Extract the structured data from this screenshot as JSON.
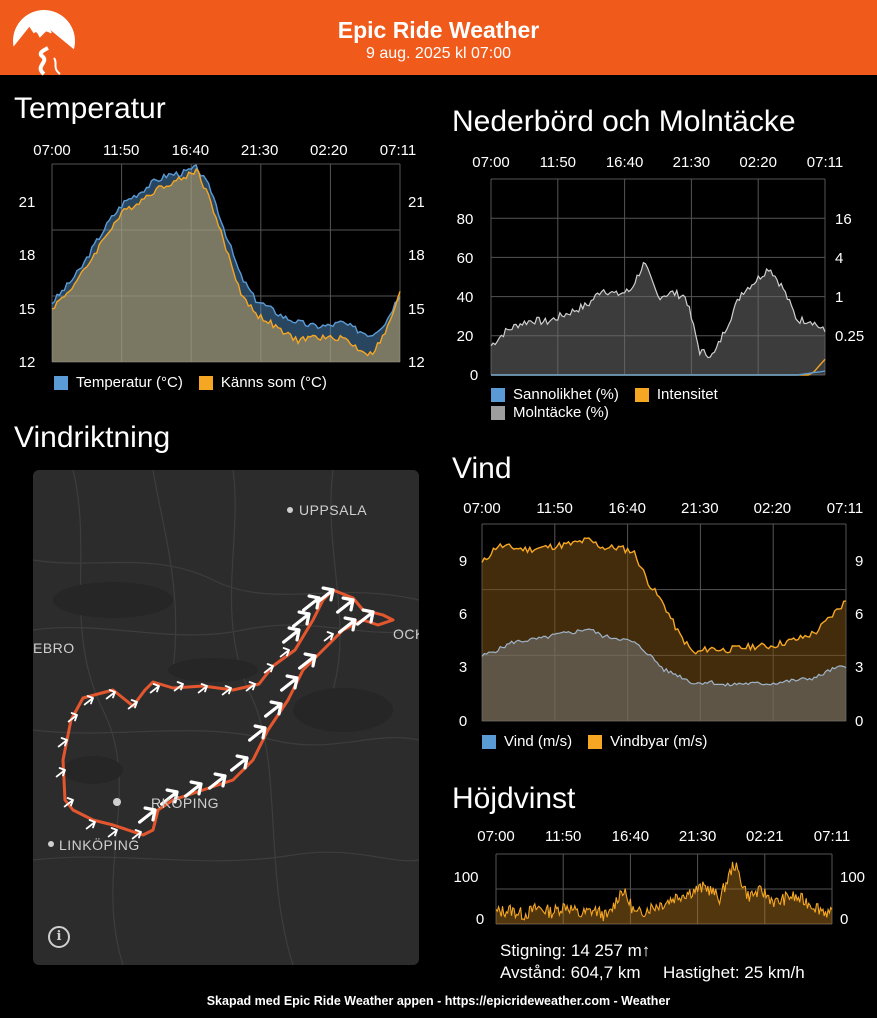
{
  "header": {
    "title": "Epic Ride Weather",
    "date": "9 aug. 2025 kl 07:00",
    "logo_icon": "mountain-road-logo",
    "bg_color": "#f05a1a"
  },
  "temperature": {
    "title": "Temperatur",
    "x_ticks": [
      "07:00",
      "11:50",
      "16:40",
      "21:30",
      "02:20",
      "07:11"
    ],
    "y_ticks": [
      "21",
      "18",
      "15",
      "12"
    ],
    "legend": [
      "Temperatur (°C)",
      "Känns som (°C)"
    ]
  },
  "precipitation": {
    "title": "Nederbörd och Molntäcke",
    "x_ticks": [
      "07:00",
      "11:50",
      "16:40",
      "21:30",
      "02:20",
      "07:11"
    ],
    "y_left_ticks": [
      "80",
      "60",
      "40",
      "20",
      "0"
    ],
    "y_right_ticks": [
      "16",
      "4",
      "1",
      "0.25"
    ],
    "legend": [
      "Sannolikhet (%)",
      "Intensitet",
      "Molntäcke (%)"
    ]
  },
  "wind_direction": {
    "title": "Vindriktning",
    "map_labels": [
      "UPPSALA",
      "EBRO",
      "OCKI",
      "RKÖPING",
      "LINKÖPING"
    ],
    "info_icon": "i"
  },
  "wind": {
    "title": "Vind",
    "x_ticks": [
      "07:00",
      "11:50",
      "16:40",
      "21:30",
      "02:20",
      "07:11"
    ],
    "y_ticks": [
      "9",
      "6",
      "3",
      "0"
    ],
    "legend": [
      "Vind (m/s)",
      "Vindbyar (m/s)"
    ]
  },
  "elevation": {
    "title": "Höjdvinst",
    "x_ticks": [
      "07:00",
      "11:50",
      "16:40",
      "21:30",
      "02:21",
      "07:11"
    ],
    "y_ticks": [
      "100",
      "0"
    ],
    "climb": "Stigning: 14 257 m↑",
    "distance": "Avstånd: 604,7 km",
    "speed": "Hastighet: 25 km/h"
  },
  "footer": "Skapad med Epic Ride Weather appen - https://epicrideweather.com -  Weather",
  "chart_data": [
    {
      "type": "area",
      "title": "Temperatur",
      "x": [
        "07:00",
        "08:00",
        "09:00",
        "10:00",
        "11:00",
        "12:00",
        "13:00",
        "14:00",
        "15:00",
        "16:00",
        "17:00",
        "18:00",
        "19:00",
        "20:00",
        "21:00",
        "22:00",
        "23:00",
        "00:00",
        "01:00",
        "02:00",
        "03:00",
        "04:00",
        "05:00",
        "06:00",
        "07:11"
      ],
      "ylim": [
        12,
        23
      ],
      "series": [
        {
          "name": "Temperatur (°C)",
          "color": "#5b9bd5",
          "values": [
            15.3,
            16.2,
            17.2,
            18.6,
            19.9,
            20.9,
            21.4,
            22.0,
            22.4,
            22.5,
            22.8,
            21.5,
            19.1,
            16.8,
            15.5,
            15.0,
            14.5,
            14.2,
            14.0,
            14.0,
            14.2,
            13.8,
            13.5,
            14.2,
            15.8
          ]
        },
        {
          "name": "Känns som (°C)",
          "color": "#f5a623",
          "values": [
            15.0,
            15.8,
            16.8,
            18.1,
            19.4,
            20.4,
            20.9,
            21.5,
            21.9,
            22.2,
            22.7,
            20.8,
            18.3,
            15.9,
            14.7,
            14.2,
            13.6,
            13.2,
            13.4,
            13.3,
            13.4,
            12.8,
            12.4,
            13.6,
            15.8
          ]
        }
      ]
    },
    {
      "type": "area",
      "title": "Nederbörd och Molntäcke",
      "x": [
        "07:00",
        "08:00",
        "09:00",
        "10:00",
        "11:00",
        "12:00",
        "13:00",
        "14:00",
        "15:00",
        "16:00",
        "17:00",
        "18:00",
        "19:00",
        "20:00",
        "21:00",
        "22:00",
        "23:00",
        "00:00",
        "01:00",
        "02:00",
        "03:00",
        "04:00",
        "05:00",
        "06:00",
        "07:11"
      ],
      "ylim": [
        0,
        100
      ],
      "series": [
        {
          "name": "Molntäcke (%)",
          "color": "#9e9e9e",
          "values": [
            15,
            22,
            26,
            28,
            27,
            30,
            33,
            36,
            44,
            41,
            43,
            57,
            40,
            42,
            40,
            12,
            10,
            26,
            42,
            48,
            55,
            44,
            28,
            28,
            22
          ]
        },
        {
          "name": "Intensitet",
          "color": "#f5a623",
          "values": [
            0,
            0,
            0,
            0,
            0,
            0,
            0,
            0,
            0,
            0,
            0,
            0,
            0,
            0,
            0,
            0,
            0,
            0,
            0,
            0,
            0,
            0,
            0,
            0,
            8
          ]
        },
        {
          "name": "Sannolikhet (%)",
          "color": "#5b9bd5",
          "values": [
            0,
            0,
            0,
            0,
            0,
            0,
            0,
            0,
            0,
            0,
            0,
            0,
            0,
            0,
            0,
            0,
            0,
            0,
            0,
            0,
            0,
            0,
            0,
            1,
            2
          ]
        }
      ]
    },
    {
      "type": "area",
      "title": "Vind",
      "x": [
        "07:00",
        "08:00",
        "09:00",
        "10:00",
        "11:00",
        "12:00",
        "13:00",
        "14:00",
        "15:00",
        "16:00",
        "17:00",
        "18:00",
        "19:00",
        "20:00",
        "21:00",
        "22:00",
        "23:00",
        "00:00",
        "01:00",
        "02:00",
        "03:00",
        "04:00",
        "05:00",
        "06:00",
        "07:11"
      ],
      "ylim": [
        0,
        10
      ],
      "series": [
        {
          "name": "Vindbyar (m/s)",
          "color": "#f5a623",
          "values": [
            8.0,
            8.9,
            8.8,
            8.7,
            8.8,
            8.9,
            9.0,
            9.2,
            8.8,
            8.8,
            8.6,
            7.0,
            5.9,
            4.4,
            3.4,
            3.7,
            3.6,
            3.7,
            3.8,
            3.8,
            4.0,
            4.2,
            4.5,
            5.3,
            6.1
          ]
        },
        {
          "name": "Vind (m/s)",
          "color": "#5b9bd5",
          "values": [
            3.3,
            3.6,
            4.0,
            4.1,
            4.2,
            4.4,
            4.5,
            4.7,
            4.3,
            4.2,
            4.0,
            3.4,
            2.6,
            2.3,
            1.9,
            2.0,
            1.8,
            1.9,
            1.9,
            1.9,
            2.0,
            2.1,
            2.2,
            2.6,
            2.8
          ]
        }
      ]
    },
    {
      "type": "area",
      "title": "Höjdvinst",
      "x": [
        "07:00",
        "08:00",
        "09:00",
        "10:00",
        "11:00",
        "12:00",
        "13:00",
        "14:00",
        "15:00",
        "16:00",
        "17:00",
        "18:00",
        "19:00",
        "20:00",
        "21:00",
        "22:00",
        "23:00",
        "00:00",
        "01:00",
        "02:00",
        "03:00",
        "04:00",
        "05:00",
        "06:00",
        "07:11"
      ],
      "ylim": [
        0,
        150
      ],
      "series": [
        {
          "name": "Höjdvinst",
          "color": "#f5a623",
          "values": [
            25,
            30,
            20,
            35,
            25,
            40,
            20,
            30,
            15,
            75,
            20,
            35,
            45,
            60,
            70,
            80,
            55,
            130,
            60,
            70,
            45,
            60,
            50,
            35,
            20
          ]
        }
      ]
    }
  ]
}
